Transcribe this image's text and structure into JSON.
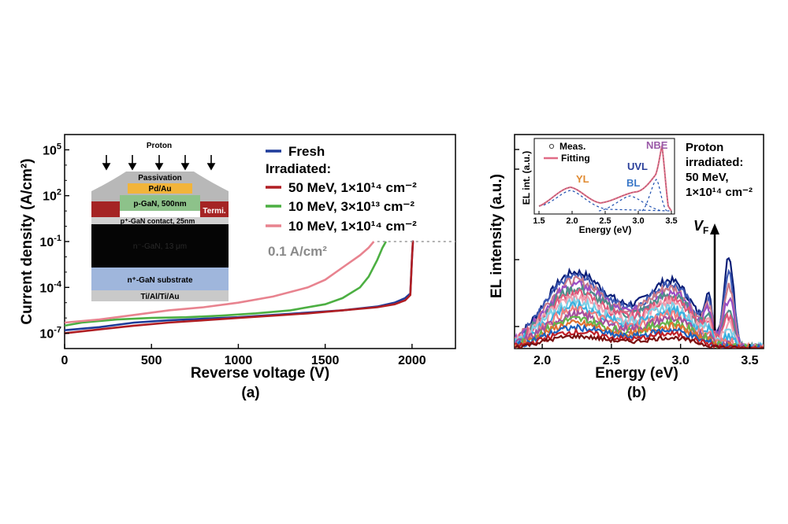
{
  "panel_a": {
    "label": "(a)",
    "inset": {
      "proton": "Proton",
      "passivation": "Passivation",
      "pdau": "Pd/Au",
      "pgan": "p-GaN, 500nm",
      "termi": "Termi.",
      "contact": "p⁺-GaN contact, 25nm",
      "ngan": "n⁻-GaN, 13 μm",
      "substrate": "n⁺-GaN substrate",
      "metal": "Ti/Al/Ti/Au"
    }
  },
  "panel_b": {
    "label": "(b)",
    "side_text": [
      "Proton",
      "irradiated:",
      "50 MeV,",
      "1×10¹⁴ cm⁻²"
    ],
    "vf_label": "V",
    "vf_sub": "F",
    "inset": {
      "ylabel": "EL int. (a.u.)",
      "xlabel": "Energy (eV)",
      "xticks": [
        "1.5",
        "2.0",
        "2.5",
        "3.0",
        "3.5"
      ],
      "legend_meas": "Meas.",
      "legend_fit": "Fitting",
      "peaks": {
        "YL": "YL",
        "BL": "BL",
        "UVL": "UVL",
        "NBE": "NBE"
      }
    }
  },
  "chart_data": [
    {
      "type": "line",
      "xlabel": "Reverse voltage (V)",
      "ylabel": "Current density (A/cm²)",
      "yscale": "log",
      "xlim": [
        0,
        2250
      ],
      "ylim_exp": [
        -8,
        6
      ],
      "xticks": [
        0,
        500,
        1000,
        1500,
        2000
      ],
      "xtick_labels": [
        "0",
        "500",
        "1000",
        "1500",
        "2000"
      ],
      "yticks_exp": [
        -7,
        -4,
        -1,
        2,
        5
      ],
      "ytick_labels": [
        [
          "10",
          "-7"
        ],
        [
          "10",
          "-4"
        ],
        [
          "10",
          "-1"
        ],
        [
          "10",
          "2"
        ],
        [
          "10",
          "5"
        ]
      ],
      "legend_header": "Irradiated:",
      "threshold": {
        "value_exp": -1,
        "label": "0.1 A/cm²"
      },
      "series": [
        {
          "name": "Fresh",
          "color": "#1f3c9a",
          "x": [
            0,
            200,
            400,
            600,
            800,
            1000,
            1200,
            1400,
            1600,
            1800,
            1900,
            1960,
            1990,
            2000,
            2005,
            2010
          ],
          "log10y": [
            -6.8,
            -6.6,
            -6.3,
            -6.15,
            -6.05,
            -5.95,
            -5.8,
            -5.65,
            -5.5,
            -5.25,
            -5.0,
            -4.7,
            -4.4,
            -2.0,
            -1.0,
            -1.0
          ]
        },
        {
          "name": "50 MeV, 1×10¹⁴ cm⁻²",
          "color": "#b01e23",
          "x": [
            0,
            200,
            400,
            600,
            800,
            1000,
            1200,
            1400,
            1600,
            1800,
            1900,
            1960,
            1990,
            2000,
            2005,
            2010
          ],
          "log10y": [
            -7.0,
            -6.75,
            -6.5,
            -6.3,
            -6.15,
            -6.0,
            -5.85,
            -5.7,
            -5.5,
            -5.3,
            -5.1,
            -4.85,
            -4.5,
            -2.0,
            -1.0,
            -1.0
          ]
        },
        {
          "name": "10 MeV, 3×10¹³ cm⁻²",
          "color": "#4caf42",
          "x": [
            0,
            100,
            300,
            500,
            700,
            900,
            1100,
            1300,
            1500,
            1600,
            1700,
            1750,
            1800,
            1830,
            1850
          ],
          "log10y": [
            -6.5,
            -6.3,
            -6.1,
            -6.0,
            -5.95,
            -5.85,
            -5.7,
            -5.5,
            -5.1,
            -4.7,
            -4.0,
            -3.3,
            -2.2,
            -1.4,
            -1.0
          ]
        },
        {
          "name": "10 MeV, 1×10¹⁴ cm⁻²",
          "color": "#e8838f",
          "x": [
            0,
            200,
            400,
            600,
            800,
            1000,
            1200,
            1400,
            1500,
            1600,
            1700,
            1750,
            1780
          ],
          "log10y": [
            -6.3,
            -6.1,
            -5.8,
            -5.5,
            -5.3,
            -5.0,
            -4.6,
            -4.0,
            -3.5,
            -2.7,
            -1.9,
            -1.4,
            -1.0
          ]
        }
      ]
    },
    {
      "type": "line",
      "xlabel": "Energy (eV)",
      "ylabel": "EL intensity (a.u.)",
      "xlim": [
        1.8,
        3.6
      ],
      "xticks": [
        "2.0",
        "2.5",
        "3.0",
        "3.5"
      ],
      "curve_colors": [
        "#0a1e78",
        "#3f5bb5",
        "#c97a8a",
        "#9a4ec4",
        "#4e8f8a",
        "#e0587a",
        "#f0a0b0",
        "#7fd0e6",
        "#3ab0e0",
        "#f08080",
        "#a44f9e",
        "#63b54a",
        "#e07030",
        "#1a60c0",
        "#c02028",
        "#7a1010"
      ],
      "arrow_label": "V_F increasing"
    }
  ]
}
